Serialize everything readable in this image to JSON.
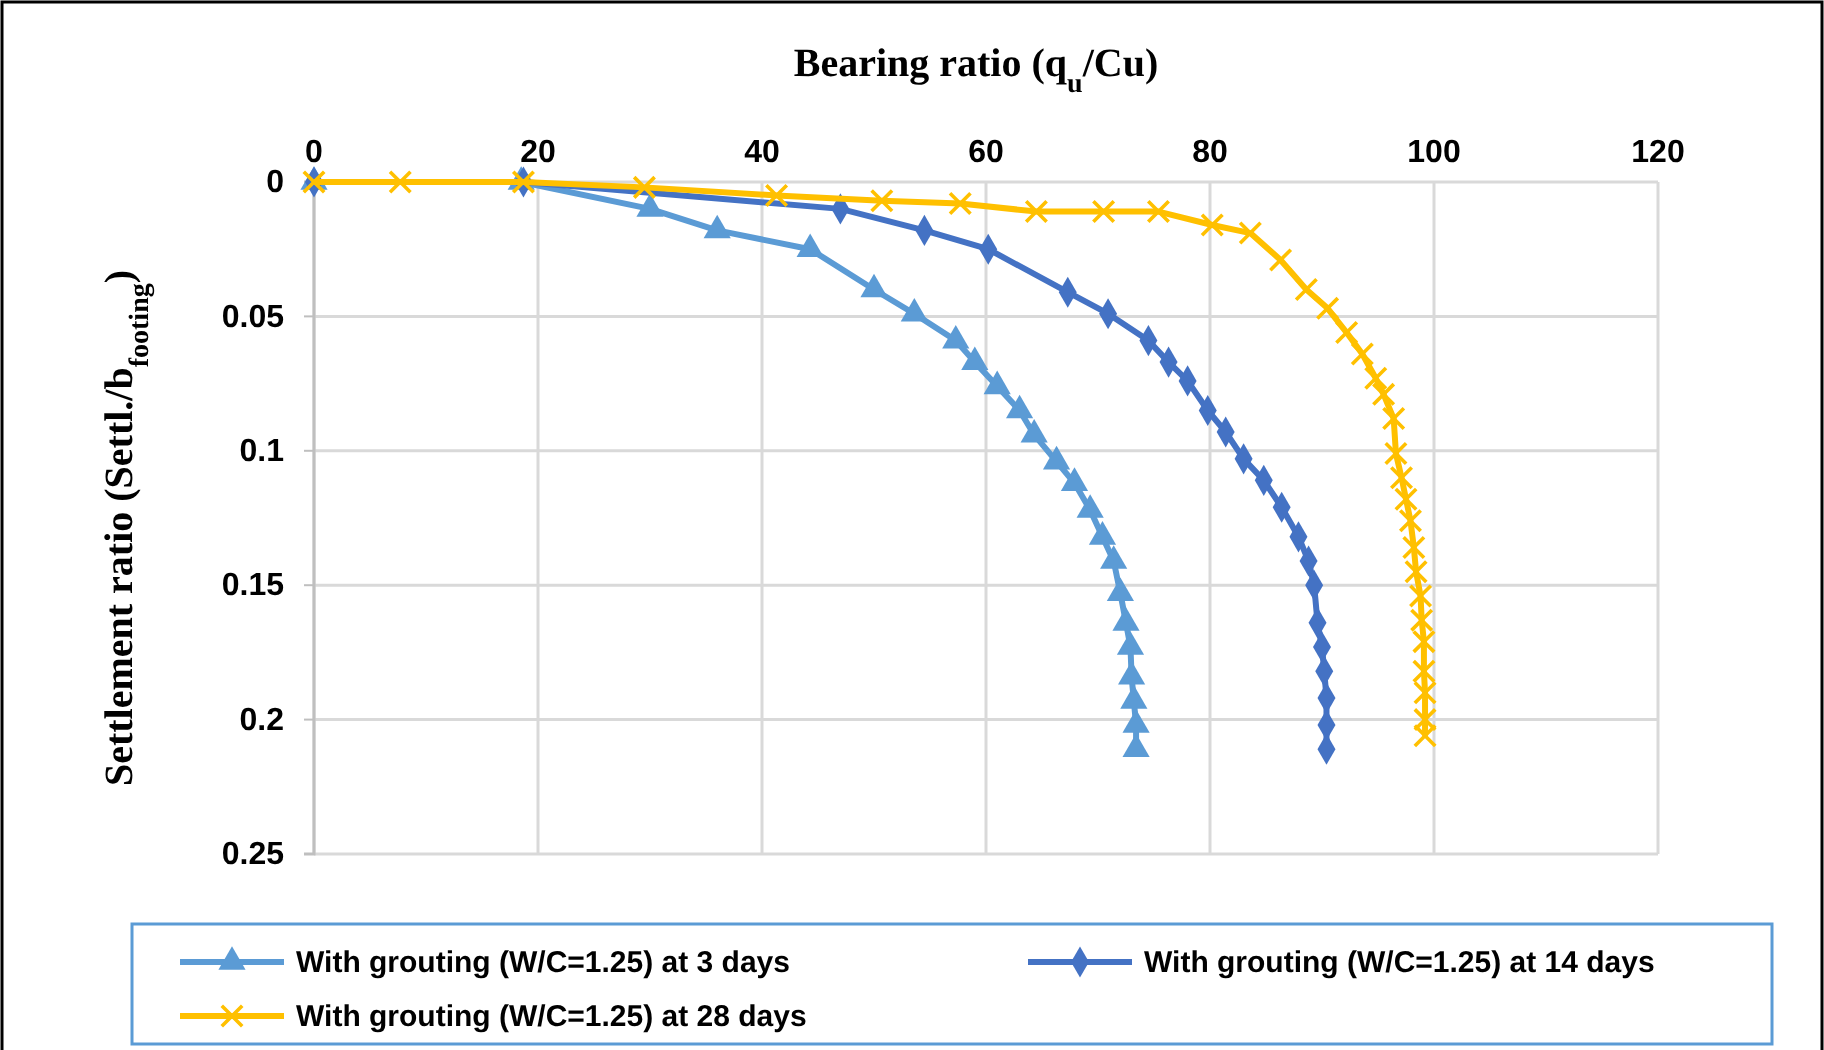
{
  "chart_data": {
    "type": "line",
    "xlabel": "Bearing ratio (q$_{u}$/Cu)",
    "ylabel": "Settlement ratio (Settl./b$_{footing}$)",
    "xlim": [
      0,
      120
    ],
    "xticks": [
      0,
      20,
      40,
      60,
      80,
      100,
      120
    ],
    "ylim": [
      0.25,
      0
    ],
    "yticks": [
      0,
      0.05,
      0.1,
      0.15,
      0.2,
      0.25
    ],
    "grid": true,
    "legend": "bottom",
    "series": [
      {
        "name": "With grouting (W/C=1.25) at 3 days",
        "color": "#5b9bd5",
        "marker": "triangle",
        "x": [
          0,
          18.5,
          30,
          36,
          44.3,
          50,
          53.6,
          57.3,
          59,
          61,
          63,
          64.3,
          66.3,
          67.9,
          69.3,
          70.4,
          71.4,
          72,
          72.5,
          72.9,
          73,
          73.2,
          73.4,
          73.4
        ],
        "values": [
          0,
          0,
          0.01,
          0.018,
          0.025,
          0.04,
          0.049,
          0.059,
          0.067,
          0.076,
          0.085,
          0.094,
          0.104,
          0.112,
          0.122,
          0.132,
          0.141,
          0.153,
          0.164,
          0.173,
          0.184,
          0.193,
          0.202,
          0.211
        ]
      },
      {
        "name": "With grouting (W/C=1.25) at 14 days",
        "color": "#4472c4",
        "marker": "diamond",
        "x": [
          0,
          18.7,
          47,
          54.5,
          60.2,
          67.3,
          70.9,
          74.5,
          76.3,
          78,
          79.8,
          81.4,
          83,
          84.8,
          86.4,
          87.9,
          88.8,
          89.3,
          89.6,
          90,
          90.2,
          90.4,
          90.4,
          90.4
        ],
        "values": [
          0,
          0,
          0.01,
          0.018,
          0.025,
          0.041,
          0.049,
          0.059,
          0.067,
          0.074,
          0.085,
          0.093,
          0.103,
          0.111,
          0.121,
          0.132,
          0.141,
          0.15,
          0.164,
          0.173,
          0.182,
          0.192,
          0.202,
          0.211
        ]
      },
      {
        "name": "With grouting (W/C=1.25) at 28 days",
        "color": "#ffc000",
        "marker": "cross",
        "x": [
          0,
          7.7,
          18.7,
          29.5,
          41.3,
          50.7,
          57.7,
          64.5,
          70.5,
          75.4,
          80.2,
          83.6,
          86.3,
          88.6,
          90.5,
          92.2,
          93.6,
          94.8,
          95.5,
          96.4,
          96.6,
          97.1,
          97.5,
          97.9,
          98.2,
          98.4,
          98.8,
          98.9,
          99.1,
          99.1,
          99.2,
          99.2,
          99.2
        ],
        "values": [
          0,
          0,
          0,
          0.002,
          0.005,
          0.007,
          0.008,
          0.011,
          0.011,
          0.011,
          0.016,
          0.019,
          0.029,
          0.04,
          0.047,
          0.056,
          0.064,
          0.073,
          0.079,
          0.088,
          0.101,
          0.11,
          0.118,
          0.126,
          0.136,
          0.145,
          0.154,
          0.163,
          0.171,
          0.182,
          0.19,
          0.2,
          0.206
        ]
      }
    ]
  }
}
